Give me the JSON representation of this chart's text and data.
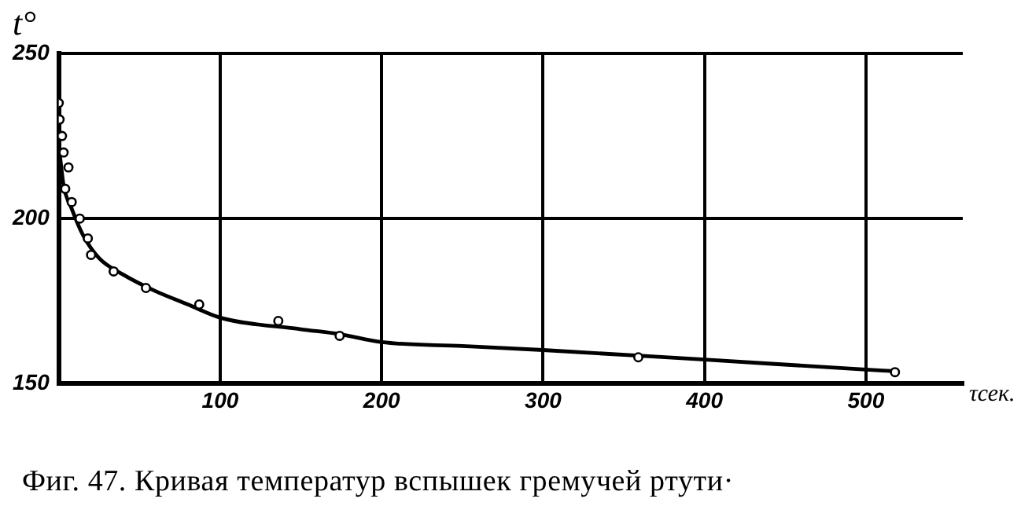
{
  "chart_data": {
    "type": "scatter",
    "title": "Фиг. 47. Кривая температур вспышек гремучей ртути·",
    "xlabel": "τсек.",
    "ylabel": "t°",
    "xlim": [
      0,
      560
    ],
    "ylim": [
      150,
      250
    ],
    "xticks": [
      100,
      200,
      300,
      400,
      500
    ],
    "yticks": [
      150,
      200,
      250
    ],
    "grid": true,
    "series": [
      {
        "marker": "circle",
        "color": "#000000",
        "x": [
          0,
          0.5,
          2,
          3,
          6,
          4,
          8,
          13,
          18,
          20,
          34,
          54,
          87,
          136,
          174,
          359,
          518
        ],
        "values": [
          235,
          230,
          225,
          220,
          215.5,
          209,
          205,
          200,
          194,
          189,
          184,
          179,
          174,
          169,
          164.5,
          158,
          153.5
        ]
      },
      {
        "type": "line",
        "marker": "none",
        "color": "#000000",
        "x": [
          0.5,
          3,
          8,
          15,
          25,
          40,
          60,
          80,
          100,
          150,
          174,
          200,
          250,
          300,
          400,
          500,
          518
        ],
        "values": [
          220,
          210,
          203,
          195,
          188,
          183,
          178,
          174,
          170,
          166.5,
          165,
          162.6,
          161.4,
          160.2,
          157.3,
          154.3,
          153.8
        ]
      }
    ]
  }
}
